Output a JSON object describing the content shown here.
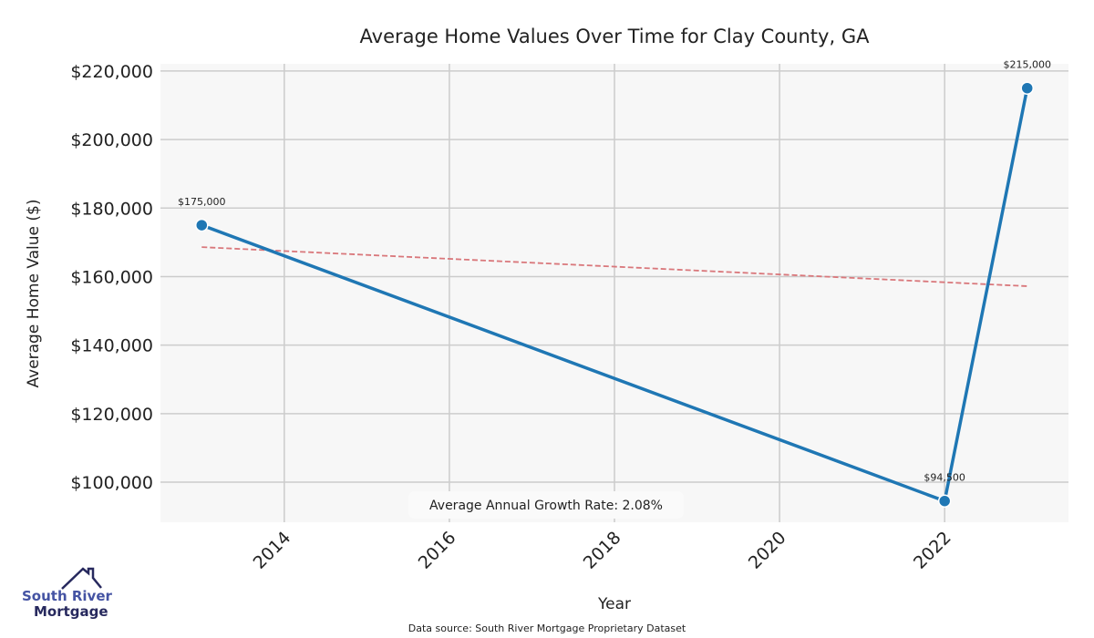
{
  "chart_data": {
    "type": "line",
    "title": "Average Home Values Over Time for Clay County, GA",
    "xlabel": "Year",
    "ylabel": "Average Home Value ($)",
    "xlim": [
      2012.5,
      2023.5
    ],
    "ylim": [
      88300,
      222100
    ],
    "grid": true,
    "x_ticks": [
      2014,
      2016,
      2018,
      2020,
      2022
    ],
    "y_ticks": [
      100000,
      120000,
      140000,
      160000,
      180000,
      200000,
      220000
    ],
    "y_tick_labels": [
      "$100,000",
      "$120,000",
      "$140,000",
      "$160,000",
      "$180,000",
      "$200,000",
      "$220,000"
    ],
    "series": [
      {
        "name": "Average Home Value",
        "color": "#1f77b4",
        "x": [
          2013,
          2022,
          2023
        ],
        "y": [
          175000,
          94500,
          215000
        ],
        "labels": [
          "$175,000",
          "$94,500",
          "$215,000"
        ]
      }
    ],
    "trend": {
      "name": "Trend",
      "color": "#d9777b",
      "x": [
        2013,
        2023
      ],
      "y": [
        168600,
        157200
      ]
    },
    "annotation": "Average Annual Growth Rate: 2.08%",
    "source": "Data source: South River Mortgage Proprietary Dataset"
  },
  "logo": {
    "line1": "South River",
    "line2": "Mortgage"
  }
}
